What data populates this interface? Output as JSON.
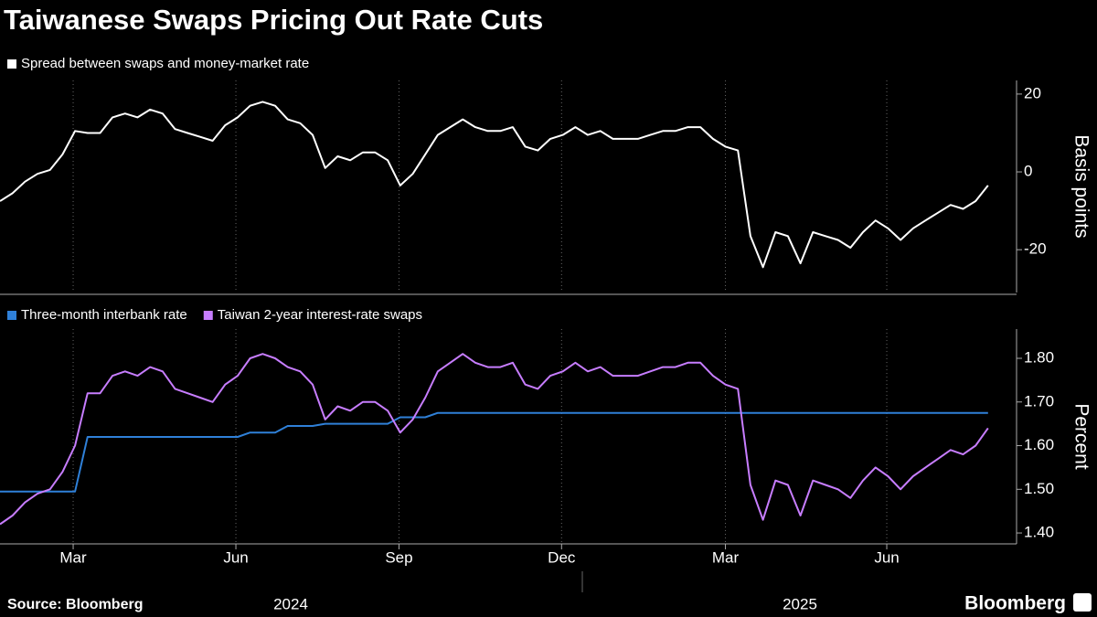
{
  "title": "Taiwanese Swaps Pricing Out Rate Cuts",
  "source": "Source: Bloomberg",
  "brand": "Bloomberg",
  "chart_data": [
    {
      "type": "line",
      "ylabel": "Basis points",
      "x": [
        0,
        1,
        2,
        3,
        4,
        5,
        6,
        7,
        8,
        9,
        10,
        11,
        12,
        13,
        14,
        15,
        16,
        17,
        18,
        19,
        20,
        21,
        22,
        23,
        24,
        25,
        26,
        27,
        28,
        29,
        30,
        31,
        32,
        33,
        34,
        35,
        36,
        37,
        38,
        39,
        40,
        41,
        42,
        43,
        44,
        45,
        46,
        47,
        48,
        49,
        50,
        51,
        52,
        53,
        54,
        55,
        56,
        57,
        58,
        59,
        60,
        61,
        62,
        63,
        64,
        65,
        66,
        67,
        68,
        69,
        70,
        71,
        72,
        73,
        74,
        75,
        76,
        77,
        78,
        79
      ],
      "xlim": [
        0,
        80.4
      ],
      "ylim": [
        -31,
        23.5
      ],
      "yticks": [
        20,
        0,
        -20
      ],
      "grid": true,
      "series": [
        {
          "name": "Spread between swaps and money-market rate",
          "color": "#ffffff",
          "values": [
            -7.5,
            -5.5,
            -2.5,
            -0.5,
            0.5,
            4.5,
            10.5,
            10,
            10,
            14,
            15,
            14,
            16,
            15,
            11,
            10,
            9,
            8,
            12,
            14,
            17,
            18,
            17,
            13.5,
            12.5,
            9.5,
            1,
            4,
            3,
            5,
            5,
            3,
            -3.5,
            -0.5,
            4.5,
            9.5,
            11.5,
            13.5,
            11.5,
            10.5,
            10.5,
            11.5,
            6.5,
            5.5,
            8.5,
            9.5,
            11.5,
            9.5,
            10.5,
            8.5,
            8.5,
            8.5,
            9.5,
            10.5,
            10.5,
            11.5,
            11.5,
            8.5,
            6.5,
            5.5,
            -16.5,
            -24.5,
            -15.5,
            -16.5,
            -23.5,
            -15.5,
            -16.5,
            -17.5,
            -19.5,
            -15.5,
            -12.5,
            -14.5,
            -17.5,
            -14.5,
            -12.5,
            -10.5,
            -8.5,
            -9.5,
            -7.5,
            -3.5
          ]
        }
      ]
    },
    {
      "type": "line",
      "ylabel": "Percent",
      "x": [
        0,
        1,
        2,
        3,
        4,
        5,
        6,
        7,
        8,
        9,
        10,
        11,
        12,
        13,
        14,
        15,
        16,
        17,
        18,
        19,
        20,
        21,
        22,
        23,
        24,
        25,
        26,
        27,
        28,
        29,
        30,
        31,
        32,
        33,
        34,
        35,
        36,
        37,
        38,
        39,
        40,
        41,
        42,
        43,
        44,
        45,
        46,
        47,
        48,
        49,
        50,
        51,
        52,
        53,
        54,
        55,
        56,
        57,
        58,
        59,
        60,
        61,
        62,
        63,
        64,
        65,
        66,
        67,
        68,
        69,
        70,
        71,
        72,
        73,
        74,
        75,
        76,
        77,
        78,
        79
      ],
      "xlim": [
        0,
        80.4
      ],
      "xticks": [
        {
          "value": 5.85,
          "label": "Mar"
        },
        {
          "value": 18.86,
          "label": "Jun"
        },
        {
          "value": 31.9,
          "label": "Sep"
        },
        {
          "value": 44.9,
          "label": "Dec"
        },
        {
          "value": 58.0,
          "label": "Mar"
        },
        {
          "value": 70.9,
          "label": "Jun"
        }
      ],
      "year_labels": [
        "2024",
        "2025"
      ],
      "ylim": [
        1.375,
        1.867
      ],
      "yticks": [
        {
          "value": 1.8,
          "label": "1.80"
        },
        {
          "value": 1.7,
          "label": "1.70"
        },
        {
          "value": 1.6,
          "label": "1.60"
        },
        {
          "value": 1.5,
          "label": "1.50"
        },
        {
          "value": 1.4,
          "label": "1.40"
        }
      ],
      "grid": true,
      "series": [
        {
          "name": "Three-month interbank rate",
          "color": "#2f80d8",
          "values": [
            1.495,
            1.495,
            1.495,
            1.495,
            1.495,
            1.495,
            1.495,
            1.62,
            1.62,
            1.62,
            1.62,
            1.62,
            1.62,
            1.62,
            1.62,
            1.62,
            1.62,
            1.62,
            1.62,
            1.62,
            1.63,
            1.63,
            1.63,
            1.645,
            1.645,
            1.645,
            1.65,
            1.65,
            1.65,
            1.65,
            1.65,
            1.65,
            1.665,
            1.665,
            1.665,
            1.675,
            1.675,
            1.675,
            1.675,
            1.675,
            1.675,
            1.675,
            1.675,
            1.675,
            1.675,
            1.675,
            1.675,
            1.675,
            1.675,
            1.675,
            1.675,
            1.675,
            1.675,
            1.675,
            1.675,
            1.675,
            1.675,
            1.675,
            1.675,
            1.675,
            1.675,
            1.675,
            1.675,
            1.675,
            1.675,
            1.675,
            1.675,
            1.675,
            1.675,
            1.675,
            1.675,
            1.675,
            1.675,
            1.675,
            1.675,
            1.675,
            1.675,
            1.675,
            1.675,
            1.675
          ]
        },
        {
          "name": "Taiwan 2-year interest-rate swaps",
          "color": "#c77dff",
          "values": [
            1.42,
            1.44,
            1.47,
            1.49,
            1.5,
            1.54,
            1.6,
            1.72,
            1.72,
            1.76,
            1.77,
            1.76,
            1.78,
            1.77,
            1.73,
            1.72,
            1.71,
            1.7,
            1.74,
            1.76,
            1.8,
            1.81,
            1.8,
            1.78,
            1.77,
            1.74,
            1.66,
            1.69,
            1.68,
            1.7,
            1.7,
            1.68,
            1.63,
            1.66,
            1.71,
            1.77,
            1.79,
            1.81,
            1.79,
            1.78,
            1.78,
            1.79,
            1.74,
            1.73,
            1.76,
            1.77,
            1.79,
            1.77,
            1.78,
            1.76,
            1.76,
            1.76,
            1.77,
            1.78,
            1.78,
            1.79,
            1.79,
            1.76,
            1.74,
            1.73,
            1.51,
            1.43,
            1.52,
            1.51,
            1.44,
            1.52,
            1.51,
            1.5,
            1.48,
            1.52,
            1.55,
            1.53,
            1.5,
            1.53,
            1.55,
            1.57,
            1.59,
            1.58,
            1.6,
            1.64
          ]
        }
      ]
    }
  ]
}
